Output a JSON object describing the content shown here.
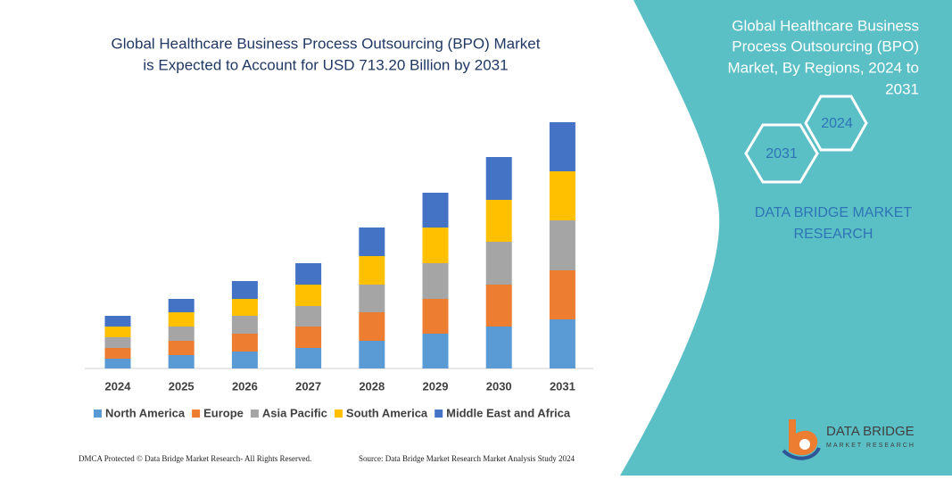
{
  "title": [
    "Global Healthcare Business Process Outsourcing (BPO) Market",
    "is Expected to Account for USD 713.20 Billion by 2031"
  ],
  "panel": {
    "heading": [
      "Global Healthcare Business",
      "Process Outsourcing (BPO)",
      "Market, By Regions, 2024 to",
      "2031"
    ],
    "hex_start": "2024",
    "hex_end": "2031",
    "company": [
      "DATA BRIDGE MARKET",
      "RESEARCH"
    ]
  },
  "logo": {
    "name": "DATA BRIDGE",
    "tagline": "MARKET RESEARCH"
  },
  "footer": {
    "left": "DMCA Protected © Data Bridge Market Research- All Rights Reserved.",
    "right": "Source: Data Bridge Market Research Market Analysis Study 2024"
  },
  "chart_data": {
    "type": "stacked-bar",
    "categories": [
      "2024",
      "2025",
      "2026",
      "2027",
      "2028",
      "2029",
      "2030",
      "2031"
    ],
    "series": [
      {
        "name": "North America",
        "color": "#5b9bd5",
        "values": [
          11,
          15,
          19,
          23,
          31,
          39,
          47,
          55
        ]
      },
      {
        "name": "Europe",
        "color": "#ed7d31",
        "values": [
          12,
          16,
          20,
          24,
          32,
          39,
          47,
          55
        ]
      },
      {
        "name": "Asia Pacific",
        "color": "#a5a5a5",
        "values": [
          12,
          16,
          20,
          23,
          31,
          40,
          48,
          56
        ]
      },
      {
        "name": "South America",
        "color": "#ffc000",
        "values": [
          12,
          16,
          19,
          24,
          32,
          40,
          47,
          55
        ]
      },
      {
        "name": "Middle East and Africa",
        "color": "#4472c4",
        "values": [
          12,
          15,
          20,
          24,
          32,
          39,
          48,
          55
        ]
      }
    ],
    "ylim": [
      0,
      276
    ]
  }
}
